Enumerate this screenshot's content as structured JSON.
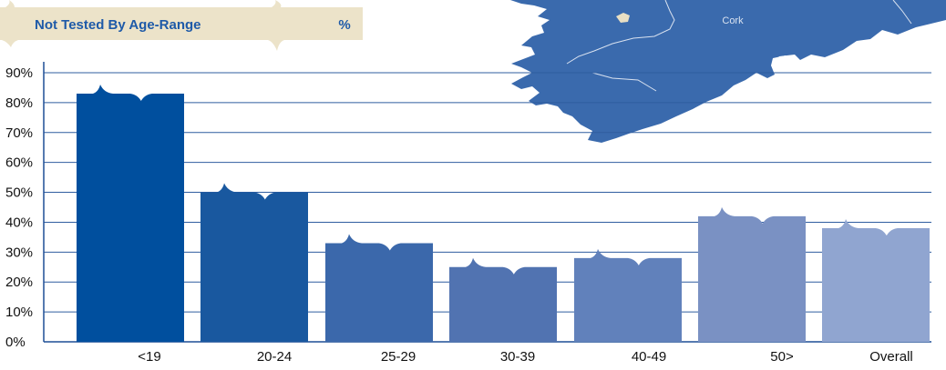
{
  "header": {
    "title": "Not Tested By Age-Range",
    "unit": "%",
    "banner_color": "#ece3c9",
    "text_color": "#1e5aa8"
  },
  "map": {
    "label": "Cork",
    "land_color": "#3a6aad",
    "lake_color": "#e8dfc4",
    "river_color": "#d9e2f0"
  },
  "chart_data": {
    "type": "bar",
    "title": "Not Tested By Age-Range",
    "ylabel": "%",
    "xlabel": "",
    "ylim": [
      0,
      90
    ],
    "yticks": [
      "0%",
      "10%",
      "20%",
      "30%",
      "40%",
      "50%",
      "60%",
      "70%",
      "80%",
      "90%"
    ],
    "categories": [
      "<19",
      "20-24",
      "25-29",
      "30-39",
      "40-49",
      "50>",
      "Overall"
    ],
    "values": [
      83,
      50,
      33,
      25,
      28,
      42,
      38
    ],
    "colors": [
      "#004f9e",
      "#19589f",
      "#3b68ab",
      "#5173b1",
      "#6181bb",
      "#7a91c3",
      "#90a5d0"
    ],
    "grid": true,
    "gridline_color": "#2f5d9f",
    "axis_color": "#1f4f96",
    "legend": "none"
  }
}
